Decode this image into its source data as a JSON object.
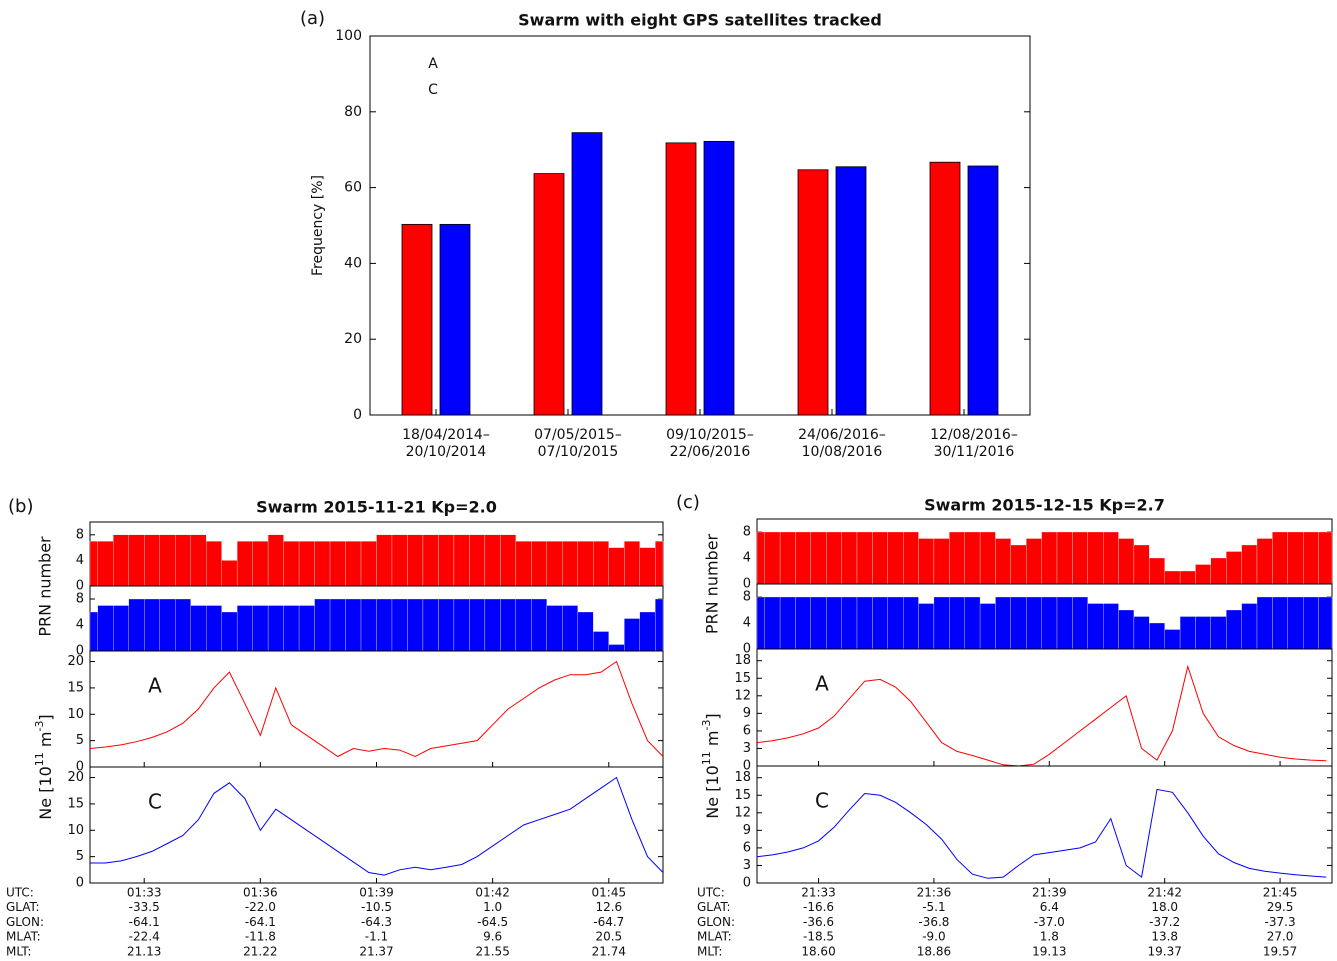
{
  "chart_data": [
    {
      "type": "bar",
      "panel_label": "(a)",
      "title": "Swarm  with eight GPS satellites tracked",
      "ylabel": "Frequency  [%]",
      "categories": [
        [
          "18/04/2014–",
          "20/10/2014"
        ],
        [
          "07/05/2015–",
          "07/10/2015"
        ],
        [
          "09/10/2015–",
          "22/06/2016"
        ],
        [
          "24/06/2016–",
          "10/08/2016"
        ],
        [
          "12/08/2016–",
          "30/11/2016"
        ]
      ],
      "series": [
        {
          "name": "A",
          "color": "#ff0000",
          "values": [
            50.3,
            63.7,
            71.8,
            64.7,
            66.7
          ]
        },
        {
          "name": "C",
          "color": "#0000ff",
          "values": [
            50.3,
            74.5,
            72.2,
            65.5,
            65.7
          ]
        }
      ],
      "ylim": [
        0,
        100
      ],
      "yticks": [
        0,
        20,
        40,
        60,
        80,
        100
      ],
      "legend": "upper left"
    },
    {
      "type": "swarm_pass",
      "panel_label": "(b)",
      "title": "Swarm   2015-11-21   Kp=2.0",
      "xlim": [
        31.6,
        46.4
      ],
      "xticks": [
        {
          "value": 33,
          "label": "01:33"
        },
        {
          "value": 36,
          "label": "01:36"
        },
        {
          "value": 39,
          "label": "01:39"
        },
        {
          "value": 42,
          "label": "01:42"
        },
        {
          "value": 45,
          "label": "01:45"
        }
      ],
      "x": [
        31.6,
        32,
        32.4,
        32.8,
        33.2,
        33.6,
        34,
        34.4,
        34.8,
        35.2,
        35.6,
        36,
        36.4,
        36.8,
        37.2,
        37.6,
        38,
        38.4,
        38.8,
        39.2,
        39.6,
        40,
        40.4,
        40.8,
        41.2,
        41.6,
        42,
        42.4,
        42.8,
        43.2,
        43.6,
        44,
        44.4,
        44.8,
        45.2,
        45.6,
        46,
        46.4
      ],
      "prn_ylabel": "PRN number",
      "prn_ylim": [
        0,
        10
      ],
      "prn_yticks": [
        0,
        4,
        8
      ],
      "ne_ylabel": [
        "Ne [10",
        "11",
        " m",
        "-3",
        "]"
      ],
      "ne_ylim": [
        0,
        22
      ],
      "ne_yticks": [
        0,
        5,
        10,
        15,
        20
      ],
      "series": [
        {
          "name": "A",
          "color": "#ff0000",
          "prn_values": [
            7,
            7,
            8,
            8,
            8,
            8,
            8,
            8,
            7,
            4,
            7,
            7,
            8,
            7,
            7,
            7,
            7,
            7,
            7,
            8,
            8,
            8,
            8,
            8,
            8,
            8,
            8,
            8,
            7,
            7,
            7,
            7,
            7,
            7,
            6,
            7,
            6,
            7
          ],
          "ne_values": [
            3.5,
            3.8,
            4.2,
            4.8,
            5.6,
            6.7,
            8.3,
            11,
            15,
            18,
            12,
            6,
            15,
            8,
            6,
            4,
            2,
            3.5,
            3,
            3.5,
            3.2,
            2,
            3.5,
            4,
            4.5,
            5,
            8,
            11,
            13,
            15,
            16.5,
            17.5,
            17.5,
            18,
            20,
            12,
            5,
            2
          ]
        },
        {
          "name": "C",
          "color": "#0000ff",
          "prn_values": [
            6,
            7,
            7,
            8,
            8,
            8,
            8,
            7,
            7,
            6,
            7,
            7,
            7,
            7,
            7,
            8,
            8,
            8,
            8,
            8,
            8,
            8,
            8,
            8,
            8,
            8,
            8,
            8,
            8,
            8,
            7,
            7,
            6,
            3,
            1,
            5,
            6,
            8
          ],
          "ne_values": [
            3.8,
            3.8,
            4.2,
            5,
            6,
            7.5,
            9,
            12,
            17,
            19,
            16,
            10,
            14,
            12,
            10,
            8,
            6,
            4,
            2,
            1.5,
            2.5,
            3,
            2.5,
            3,
            3.5,
            5,
            7,
            9,
            11,
            12,
            13,
            14,
            16,
            18,
            20,
            12,
            5,
            2
          ]
        }
      ],
      "utc_label": "UTC:",
      "footer": [
        {
          "label": "GLAT:",
          "values": [
            "-33.5",
            "-22.0",
            "-10.5",
            "1.0",
            "12.6"
          ]
        },
        {
          "label": "GLON:",
          "values": [
            "-64.1",
            "-64.1",
            "-64.3",
            "-64.5",
            "-64.7"
          ]
        },
        {
          "label": "MLAT:",
          "values": [
            "-22.4",
            "-11.8",
            "-1.1",
            "9.6",
            "20.5"
          ]
        },
        {
          "label": "MLT:",
          "values": [
            "21.13",
            "21.22",
            "21.37",
            "21.55",
            "21.74"
          ]
        }
      ]
    },
    {
      "type": "swarm_pass",
      "panel_label": "(c)",
      "title": "Swarm   2015-12-15   Kp=2.7",
      "xlim": [
        31.4,
        46.35
      ],
      "xticks": [
        {
          "value": 33,
          "label": "21:33"
        },
        {
          "value": 36,
          "label": "21:36"
        },
        {
          "value": 39,
          "label": "21:39"
        },
        {
          "value": 42,
          "label": "21:42"
        },
        {
          "value": 45,
          "label": "21:45"
        }
      ],
      "x": [
        31.4,
        31.8,
        32.2,
        32.6,
        33,
        33.4,
        33.8,
        34.2,
        34.6,
        35,
        35.4,
        35.8,
        36.2,
        36.6,
        37,
        37.4,
        37.8,
        38.2,
        38.6,
        39,
        39.4,
        39.8,
        40.2,
        40.6,
        41,
        41.4,
        41.8,
        42.2,
        42.6,
        43,
        43.4,
        43.8,
        44.2,
        44.6,
        45,
        45.4,
        45.8,
        46.2
      ],
      "prn_ylabel": "PRN number",
      "prn_ylim": [
        0,
        10
      ],
      "prn_yticks": [
        0,
        4,
        8
      ],
      "ne_ylabel": [
        "Ne [10",
        "11",
        " m",
        "-3",
        "]"
      ],
      "ne_ylim": [
        0,
        20
      ],
      "ne_yticks": [
        0,
        3,
        6,
        9,
        12,
        15,
        18
      ],
      "series": [
        {
          "name": "A",
          "color": "#ff0000",
          "prn_values": [
            8,
            8,
            8,
            8,
            8,
            8,
            8,
            8,
            8,
            8,
            8,
            7,
            7,
            8,
            8,
            8,
            7,
            6,
            7,
            8,
            8,
            8,
            8,
            8,
            7,
            6,
            4,
            2,
            2,
            3,
            4,
            5,
            6,
            7,
            8,
            8,
            8,
            8
          ],
          "ne_values": [
            4,
            4.3,
            4.8,
            5.5,
            6.5,
            8.5,
            11.5,
            14.5,
            14.8,
            13.5,
            11,
            7.5,
            4,
            2.5,
            1.8,
            1,
            0.2,
            0,
            0.3,
            2,
            4,
            6,
            8,
            10,
            12,
            3,
            1,
            6,
            17,
            9,
            5,
            3.5,
            2.5,
            2,
            1.5,
            1.2,
            1,
            0.9
          ]
        },
        {
          "name": "C",
          "color": "#0000ff",
          "prn_values": [
            8,
            8,
            8,
            8,
            8,
            8,
            8,
            8,
            8,
            8,
            8,
            7,
            8,
            8,
            8,
            7,
            8,
            8,
            8,
            8,
            8,
            8,
            7,
            7,
            6,
            5,
            4,
            3,
            5,
            5,
            5,
            6,
            7,
            8,
            8,
            8,
            8,
            8
          ],
          "ne_values": [
            4.5,
            4.8,
            5.3,
            6,
            7.2,
            9.5,
            12.5,
            15.3,
            15,
            13.8,
            12,
            10,
            7.5,
            4,
            1.5,
            0.8,
            1,
            3,
            4.8,
            5.2,
            5.6,
            6,
            7,
            11,
            3,
            1,
            16,
            15.5,
            12,
            8,
            5,
            3.5,
            2.5,
            2,
            1.7,
            1.4,
            1.2,
            1
          ]
        }
      ],
      "utc_label": "UTC:",
      "footer": [
        {
          "label": "GLAT:",
          "values": [
            "-16.6",
            "-5.1",
            "6.4",
            "18.0",
            "29.5"
          ]
        },
        {
          "label": "GLON:",
          "values": [
            "-36.6",
            "-36.8",
            "-37.0",
            "-37.2",
            "-37.3"
          ]
        },
        {
          "label": "MLAT:",
          "values": [
            "-18.5",
            "-9.0",
            "1.8",
            "13.8",
            "27.0"
          ]
        },
        {
          "label": "MLT:",
          "values": [
            "18.60",
            "18.86",
            "19.13",
            "19.37",
            "19.57"
          ]
        }
      ]
    }
  ]
}
